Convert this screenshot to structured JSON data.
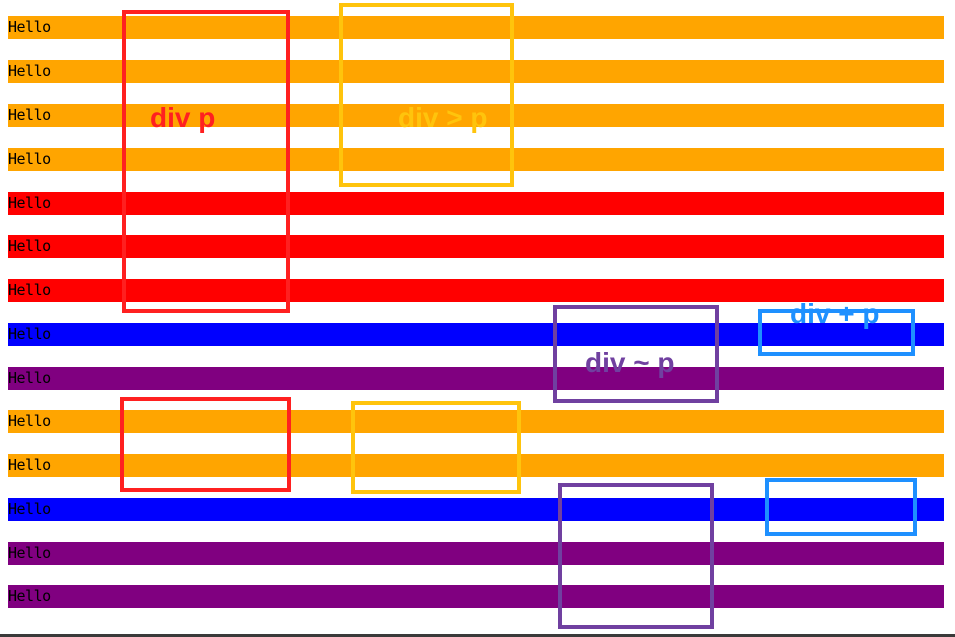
{
  "colors": {
    "orange": "#ffa500",
    "red": "#ff0000",
    "blue": "#0000ff",
    "purple": "#800080",
    "box_red": "#ff2020",
    "box_gold": "#ffc40c",
    "box_purple": "#7040a0",
    "box_blue": "#1e90ff"
  },
  "rows": [
    {
      "text": "Hello",
      "color": "orange"
    },
    {
      "text": "Hello",
      "color": "orange"
    },
    {
      "text": "Hello",
      "color": "orange"
    },
    {
      "text": "Hello",
      "color": "orange"
    },
    {
      "text": "Hello",
      "color": "red"
    },
    {
      "text": "Hello",
      "color": "red"
    },
    {
      "text": "Hello",
      "color": "red"
    },
    {
      "text": "Hello",
      "color": "blue"
    },
    {
      "text": "Hello",
      "color": "purple"
    },
    {
      "text": "Hello",
      "color": "orange"
    },
    {
      "text": "Hello",
      "color": "orange"
    },
    {
      "text": "Hello",
      "color": "blue"
    },
    {
      "text": "Hello",
      "color": "purple"
    },
    {
      "text": "Hello",
      "color": "purple"
    }
  ],
  "annotations": {
    "descendant": {
      "label": "div p",
      "color": "box_red"
    },
    "child": {
      "label": "div > p",
      "color": "box_gold"
    },
    "general_sibling": {
      "label": "div ~ p",
      "color": "box_purple"
    },
    "adjacent_sibling": {
      "label": "div + p",
      "color": "box_blue"
    }
  }
}
